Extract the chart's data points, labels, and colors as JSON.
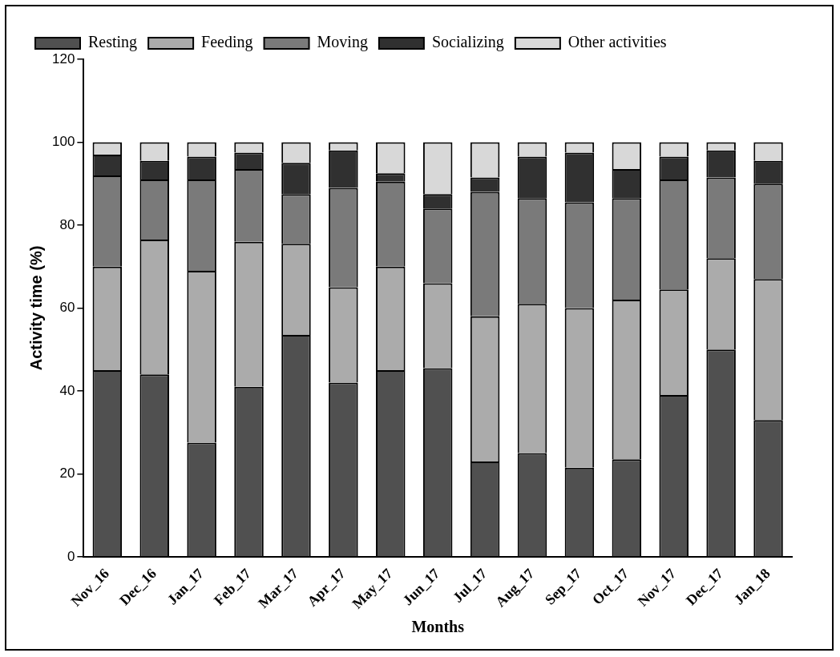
{
  "chart_data": {
    "type": "bar",
    "stacked": true,
    "xlabel": "Months",
    "ylabel": "Activity time (%)",
    "categories": [
      "Nov_16",
      "Dec_16",
      "Jan_17",
      "Feb_17",
      "Mar_17",
      "Apr_17",
      "May_17",
      "Jun_17",
      "Jul_17",
      "Aug_17",
      "Sep_17",
      "Oct_17",
      "Nov_17",
      "Dec_17",
      "Jan_18"
    ],
    "series": [
      {
        "name": "Resting",
        "color": "#505050",
        "values": [
          45,
          44,
          27.5,
          41,
          53.5,
          42,
          45,
          45.5,
          23,
          25,
          21.5,
          23.5,
          39,
          50,
          33
        ]
      },
      {
        "name": "Feeding",
        "color": "#ababab",
        "values": [
          25,
          32.5,
          41.5,
          35,
          22,
          23,
          25,
          20.5,
          35,
          36,
          38.5,
          38.5,
          25.5,
          22,
          34
        ]
      },
      {
        "name": "Moving",
        "color": "#7a7a7a",
        "values": [
          22,
          14.5,
          22,
          17.5,
          12,
          24,
          20.5,
          18,
          30,
          25.5,
          25.5,
          24.5,
          26.5,
          19.5,
          23
        ]
      },
      {
        "name": "Socializing",
        "color": "#303030",
        "values": [
          5,
          4.5,
          5.5,
          4,
          7.5,
          9,
          2,
          3.5,
          3.5,
          10,
          12,
          7,
          5.5,
          6.5,
          5.5
        ]
      },
      {
        "name": "Other activities",
        "color": "#d8d8d8",
        "values": [
          3,
          4.5,
          3.5,
          2.5,
          5,
          2,
          7.5,
          12.5,
          8.5,
          3.5,
          2.5,
          6.5,
          3.5,
          2,
          4.5
        ]
      }
    ],
    "ylim": [
      0,
      120
    ],
    "yticks": [
      0,
      20,
      40,
      60,
      80,
      100,
      120
    ],
    "grid": false,
    "legend": "top"
  }
}
